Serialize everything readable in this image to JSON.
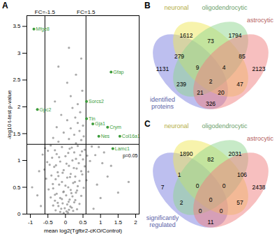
{
  "chart_data": [
    {
      "type": "scatter",
      "panel": "A",
      "x_label": "mean log2(Tgfbr2-cKO/Control)",
      "y_label": "-log10 t-test p-value",
      "xlim": [
        -1.1,
        2.1
      ],
      "ylim": [
        0,
        3.7
      ],
      "xticks": [
        -1,
        -0.5,
        0,
        0.5,
        1,
        1.5,
        2
      ],
      "yticks": [
        0,
        0.5,
        1,
        1.5,
        2,
        2.5,
        3,
        3.5
      ],
      "grid": false,
      "color": "#8c8c8c",
      "x": [
        -0.05,
        0.03,
        0.1,
        -0.12,
        0.18,
        -0.2,
        0.05,
        -0.08,
        0.25,
        -0.3,
        0.12,
        -0.15,
        0.2,
        0.02,
        -0.25,
        0.3,
        -0.05,
        0.15,
        -0.35,
        0.08,
        0.35,
        -0.18,
        0.22,
        -0.1,
        0.4,
        -0.28,
        0.05,
        0.28,
        -0.4,
        0.15,
        -0.22,
        0.45,
        -0.05,
        0.32,
        -0.32,
        0.1,
        -0.45,
        0.38,
        -0.15,
        0.2,
        0.5,
        -0.38,
        0.0,
        0.42,
        -0.25,
        0.25,
        -0.5,
        0.55,
        0.12,
        -0.1,
        0.35,
        -0.42,
        0.07,
        -0.15,
        0.22,
        -0.28,
        0.33,
        -0.02,
        0.14,
        -0.35,
        0.4,
        -0.22,
        0.09,
        0.28,
        -0.1,
        -0.42,
        0.45,
        -0.3,
        0.17,
        -0.06,
        0.33,
        -0.48,
        0.52,
        0.0,
        -0.36,
        0.27,
        0.6,
        -0.55,
        0.13,
        -0.2,
        0.48,
        -0.08,
        0.65,
        -0.6,
        0.24,
        0.55,
        -0.27,
        0.03,
        -0.52,
        0.7,
        0.3,
        -0.18,
        0.62,
        -0.65,
        0.08,
        0.47,
        -0.3,
        0.18,
        0.75,
        -0.58,
        0.3,
        -0.2,
        0.45,
        0.1,
        -0.35,
        0.52,
        0.25,
        -0.05,
        0.4,
        0.15,
        -0.25,
        0.5,
        0.35,
        0.05,
        0.28,
        -0.12,
        0.42,
        0.2,
        0.35,
        -0.3,
        0.15,
        0.48,
        0.05,
        0.3,
        -0.2,
        0.45,
        0.1,
        0.8,
        -0.7,
        1.0,
        -0.8,
        0.9,
        1.2,
        -0.75,
        1.05,
        0.85,
        1.5,
        1.8,
        -0.95,
        1.3,
        0.95,
        1.1
      ],
      "values": [
        0.02,
        0.05,
        0.08,
        0.1,
        0.12,
        0.15,
        0.18,
        0.2,
        0.22,
        0.25,
        0.27,
        0.3,
        0.33,
        0.35,
        0.38,
        0.4,
        0.42,
        0.45,
        0.48,
        0.5,
        0.52,
        0.55,
        0.58,
        0.6,
        0.62,
        0.65,
        0.68,
        0.7,
        0.72,
        0.75,
        0.78,
        0.8,
        0.82,
        0.85,
        0.88,
        0.9,
        0.92,
        0.95,
        0.98,
        1.0,
        1.02,
        1.05,
        1.08,
        1.1,
        1.12,
        1.15,
        1.18,
        1.2,
        1.22,
        1.25,
        1.27,
        1.28,
        0.03,
        0.04,
        0.06,
        0.07,
        0.09,
        0.11,
        0.14,
        0.16,
        0.19,
        0.21,
        0.23,
        0.26,
        0.28,
        0.31,
        0.34,
        0.36,
        0.39,
        0.41,
        0.44,
        0.46,
        0.49,
        0.53,
        0.56,
        0.6,
        0.63,
        0.66,
        0.69,
        0.71,
        0.74,
        0.77,
        0.79,
        0.83,
        0.86,
        0.89,
        0.91,
        0.94,
        0.97,
        0.99,
        1.03,
        1.06,
        1.09,
        1.11,
        1.14,
        1.17,
        1.19,
        1.24,
        1.26,
        1.23,
        1.32,
        1.35,
        1.38,
        1.4,
        1.42,
        1.45,
        1.48,
        1.52,
        1.55,
        1.6,
        1.62,
        1.65,
        1.7,
        1.75,
        1.8,
        1.85,
        1.9,
        1.98,
        2.05,
        2.1,
        2.2,
        2.3,
        2.45,
        2.6,
        2.75,
        2.9,
        3.1,
        0.1,
        0.15,
        0.3,
        0.35,
        0.55,
        0.7,
        0.8,
        0.95,
        1.1,
        0.4,
        0.6,
        0.5,
        0.9,
        1.25,
        1.15
      ],
      "highlighted": {
        "color": "#3c9c3c",
        "points": [
          {
            "label": "Mfge8",
            "x": -0.9,
            "y": 3.45
          },
          {
            "label": "Gpc2",
            "x": -0.8,
            "y": 1.95
          },
          {
            "label": "Gfap",
            "x": 1.3,
            "y": 2.65
          },
          {
            "label": "Sorcs2",
            "x": 0.6,
            "y": 2.1
          },
          {
            "label": "Tln",
            "x": 0.6,
            "y": 1.78
          },
          {
            "label": "Gja1",
            "x": 0.78,
            "y": 1.68
          },
          {
            "label": "Crym",
            "x": 1.2,
            "y": 1.62
          },
          {
            "label": "Nes",
            "x": 0.95,
            "y": 1.45
          },
          {
            "label": "Col16a1",
            "x": 1.55,
            "y": 1.45
          },
          {
            "label": "Lamc1",
            "x": 1.35,
            "y": 1.22
          }
        ]
      },
      "reference_lines": [
        {
          "axis": "x",
          "value": -0.585,
          "label": "FC=-1.5"
        },
        {
          "axis": "x",
          "value": 0.585,
          "label": "FC=1.5"
        },
        {
          "axis": "y",
          "value": 1.301,
          "label": "p=0.05"
        }
      ]
    },
    {
      "type": "venn",
      "panel": "B",
      "sets": [
        {
          "name": "identified proteins",
          "color": "#7b7fe0"
        },
        {
          "name": "neuronal",
          "color": "#efe85a"
        },
        {
          "name": "oligodendrocytic",
          "color": "#8fd68f"
        },
        {
          "name": "astrocytic",
          "color": "#f08080"
        }
      ],
      "regions": [
        {
          "sets": [
            "identified proteins"
          ],
          "value": 1131
        },
        {
          "sets": [
            "neuronal"
          ],
          "value": 1612
        },
        {
          "sets": [
            "oligodendrocytic"
          ],
          "value": 1794
        },
        {
          "sets": [
            "astrocytic"
          ],
          "value": 2123
        },
        {
          "sets": [
            "identified proteins",
            "neuronal"
          ],
          "value": 279
        },
        {
          "sets": [
            "neuronal",
            "oligodendrocytic"
          ],
          "value": 73
        },
        {
          "sets": [
            "oligodendrocytic",
            "astrocytic"
          ],
          "value": 85
        },
        {
          "sets": [
            "identified proteins",
            "astrocytic"
          ],
          "value": 326
        },
        {
          "sets": [
            "identified proteins",
            "neuronal",
            "oligodendrocytic"
          ],
          "value": 9
        },
        {
          "sets": [
            "neuronal",
            "oligodendrocytic",
            "astrocytic"
          ],
          "value": 4
        },
        {
          "sets": [
            "identified proteins",
            "oligodendrocytic"
          ],
          "value": 239
        },
        {
          "sets": [
            "neuronal",
            "astrocytic"
          ],
          "value": 47
        },
        {
          "sets": [
            "identified proteins",
            "oligodendrocytic",
            "astrocytic"
          ],
          "value": 21
        },
        {
          "sets": [
            "identified proteins",
            "neuronal",
            "astrocytic"
          ],
          "value": 20
        },
        {
          "sets": [
            "identified proteins",
            "neuronal",
            "oligodendrocytic",
            "astrocytic"
          ],
          "value": 2
        }
      ]
    },
    {
      "type": "venn",
      "panel": "C",
      "sets": [
        {
          "name": "significantly regulated",
          "color": "#7b7fe0"
        },
        {
          "name": "neuronal",
          "color": "#efe85a"
        },
        {
          "name": "oligodendrocytic",
          "color": "#8fd68f"
        },
        {
          "name": "astrocytic",
          "color": "#f08080"
        }
      ],
      "regions": [
        {
          "sets": [
            "significantly regulated"
          ],
          "value": 7
        },
        {
          "sets": [
            "neuronal"
          ],
          "value": 1890
        },
        {
          "sets": [
            "oligodendrocytic"
          ],
          "value": 2031
        },
        {
          "sets": [
            "astrocytic"
          ],
          "value": 2438
        },
        {
          "sets": [
            "significantly regulated",
            "neuronal"
          ],
          "value": 1
        },
        {
          "sets": [
            "neuronal",
            "oligodendrocytic"
          ],
          "value": 82
        },
        {
          "sets": [
            "oligodendrocytic",
            "astrocytic"
          ],
          "value": 106
        },
        {
          "sets": [
            "significantly regulated",
            "astrocytic"
          ],
          "value": 11
        },
        {
          "sets": [
            "significantly regulated",
            "neuronal",
            "oligodendrocytic"
          ],
          "value": 0
        },
        {
          "sets": [
            "neuronal",
            "oligodendrocytic",
            "astrocytic"
          ],
          "value": 0
        },
        {
          "sets": [
            "significantly regulated",
            "oligodendrocytic"
          ],
          "value": 2
        },
        {
          "sets": [
            "neuronal",
            "astrocytic"
          ],
          "value": 57
        },
        {
          "sets": [
            "significantly regulated",
            "oligodendrocytic",
            "astrocytic"
          ],
          "value": 0
        },
        {
          "sets": [
            "significantly regulated",
            "neuronal",
            "astrocytic"
          ],
          "value": 0
        },
        {
          "sets": [
            "significantly regulated",
            "neuronal",
            "oligodendrocytic",
            "astrocytic"
          ],
          "value": 0
        }
      ]
    }
  ]
}
